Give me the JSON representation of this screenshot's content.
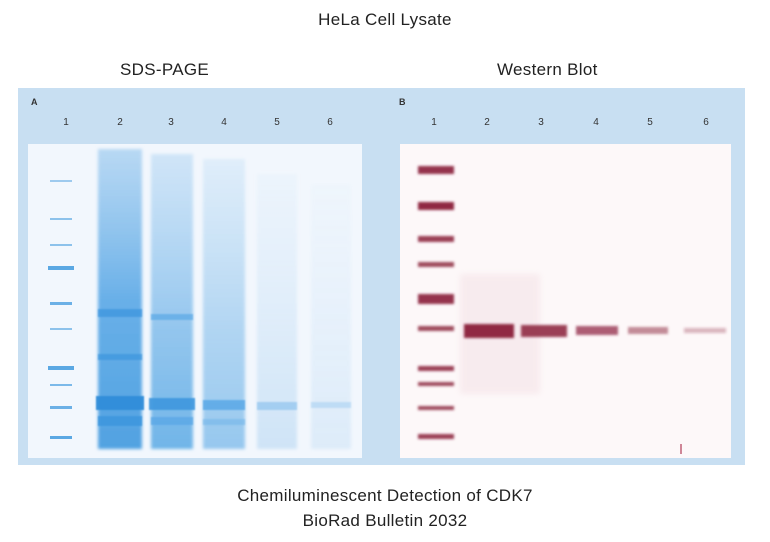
{
  "title": "HeLa Cell Lysate",
  "panels": {
    "a": {
      "heading": "SDS-PAGE",
      "letter": "A",
      "lanes": [
        "1",
        "2",
        "3",
        "4",
        "5",
        "6"
      ],
      "stain_color": "#4a9ee0"
    },
    "b": {
      "heading": "Western Blot",
      "letter": "B",
      "lanes": [
        "1",
        "2",
        "3",
        "4",
        "5",
        "6"
      ],
      "stain_color": "#8a1f3a"
    }
  },
  "caption": {
    "line1": "Chemiluminescent Detection of CDK7",
    "line2": "BioRad Bulletin 2032"
  },
  "frame_color": "#c8dff2"
}
